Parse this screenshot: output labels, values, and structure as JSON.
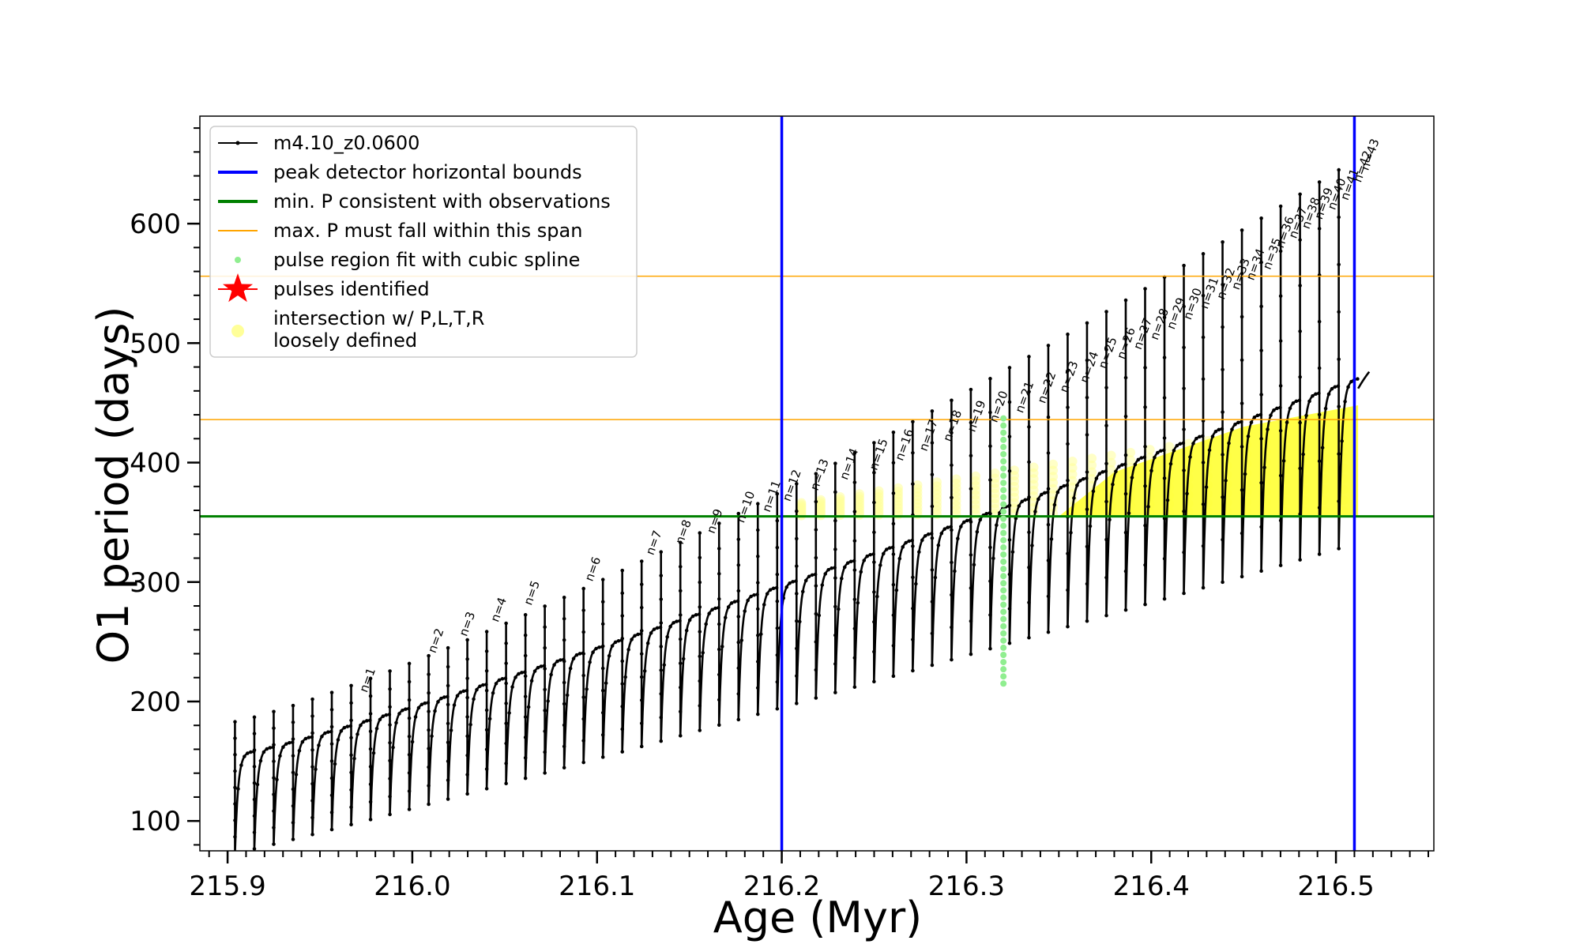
{
  "chart_data": {
    "type": "line",
    "title": "",
    "xlabel": "Age (Myr)",
    "ylabel": "O1 period (days)",
    "xlim": [
      215.885,
      216.553
    ],
    "ylim": [
      75,
      690
    ],
    "xticks": [
      215.9,
      216.0,
      216.1,
      216.2,
      216.3,
      216.4,
      216.5
    ],
    "xtick_labels": [
      "215.9",
      "216.0",
      "216.1",
      "216.2",
      "216.3",
      "216.4",
      "216.5"
    ],
    "yticks": [
      100,
      200,
      300,
      400,
      500,
      600
    ],
    "ytick_labels": [
      "100",
      "200",
      "300",
      "400",
      "500",
      "600"
    ],
    "grid": false,
    "legend_position": "top-left",
    "legend": [
      {
        "label": "m4.10_z0.0600",
        "style": "line-dot",
        "color": "#000000"
      },
      {
        "label": "peak detector horizontal bounds",
        "style": "line",
        "color": "#0000ff"
      },
      {
        "label": "min. P consistent with observations",
        "style": "line",
        "color": "#008000"
      },
      {
        "label": "max. P must fall within this span",
        "style": "thin-line",
        "color": "#ffa500"
      },
      {
        "label": "pulse region fit with cubic spline",
        "style": "dot",
        "color": "#90ee90"
      },
      {
        "label": "pulses identified",
        "style": "star",
        "color": "#ff0000"
      },
      {
        "label": "intersection w/ P,L,T,R",
        "label2": "loosely defined",
        "style": "big-dot",
        "color": "#ffff99"
      }
    ],
    "vertical_lines": [
      {
        "x": 216.2,
        "color": "#0000ff"
      },
      {
        "x": 216.51,
        "color": "#0000ff"
      }
    ],
    "horizontal_lines": [
      {
        "y": 355,
        "color": "#008000",
        "width": 3
      },
      {
        "y": 436,
        "color": "#ffa500",
        "width": 1.5
      },
      {
        "y": 556,
        "color": "#ffa500",
        "width": 1.5
      }
    ],
    "green_pulse_x": 216.32,
    "green_pulse_range": [
      215,
      442
    ],
    "series": [
      {
        "type": "pulse-cycles",
        "color": "#000000",
        "start_age": 215.904,
        "end_age": 216.512,
        "cycle_count": 58,
        "cycle_min_start": 85,
        "cycle_min_end": 340,
        "cycle_max_start": 158,
        "cycle_max_end": 470,
        "tail_end_age": 216.518,
        "tail_end_period": 476
      }
    ],
    "pulse_labels": [
      {
        "label": "n=1",
        "x": 215.972,
        "y": 203
      },
      {
        "label": "n=2",
        "x": 216.009,
        "y": 236
      },
      {
        "label": "n=3",
        "x": 216.026,
        "y": 250
      },
      {
        "label": "n=4",
        "x": 216.043,
        "y": 262
      },
      {
        "label": "n=5",
        "x": 216.061,
        "y": 276
      },
      {
        "label": "n=6",
        "x": 216.094,
        "y": 296
      },
      {
        "label": "n=7",
        "x": 216.127,
        "y": 318
      },
      {
        "label": "n=8",
        "x": 216.143,
        "y": 327
      },
      {
        "label": "n=9",
        "x": 216.16,
        "y": 336
      },
      {
        "label": "n=10",
        "x": 216.176,
        "y": 345
      },
      {
        "label": "n=11",
        "x": 216.19,
        "y": 354
      },
      {
        "label": "n=12",
        "x": 216.201,
        "y": 363
      },
      {
        "label": "n=13",
        "x": 216.216,
        "y": 372
      },
      {
        "label": "n=14",
        "x": 216.232,
        "y": 381
      },
      {
        "label": "n=15",
        "x": 216.248,
        "y": 389
      },
      {
        "label": "n=16",
        "x": 216.262,
        "y": 397
      },
      {
        "label": "n=17",
        "x": 216.275,
        "y": 405
      },
      {
        "label": "n=18",
        "x": 216.288,
        "y": 413
      },
      {
        "label": "n=19",
        "x": 216.301,
        "y": 421
      },
      {
        "label": "n=20",
        "x": 216.313,
        "y": 429
      },
      {
        "label": "n=21",
        "x": 216.327,
        "y": 437
      },
      {
        "label": "n=22",
        "x": 216.339,
        "y": 445
      },
      {
        "label": "n=23",
        "x": 216.351,
        "y": 454
      },
      {
        "label": "n=24",
        "x": 216.362,
        "y": 462
      },
      {
        "label": "n=25",
        "x": 216.372,
        "y": 474
      },
      {
        "label": "n=26",
        "x": 216.382,
        "y": 482
      },
      {
        "label": "n=27",
        "x": 216.391,
        "y": 490
      },
      {
        "label": "n=28",
        "x": 216.4,
        "y": 498
      },
      {
        "label": "n=29",
        "x": 216.409,
        "y": 507
      },
      {
        "label": "n=30",
        "x": 216.418,
        "y": 515
      },
      {
        "label": "n=31",
        "x": 216.427,
        "y": 524
      },
      {
        "label": "n=32",
        "x": 216.436,
        "y": 532
      },
      {
        "label": "n=33",
        "x": 216.444,
        "y": 540
      },
      {
        "label": "n=34",
        "x": 216.452,
        "y": 548
      },
      {
        "label": "n=35",
        "x": 216.461,
        "y": 557
      },
      {
        "label": "n=36",
        "x": 216.468,
        "y": 575
      },
      {
        "label": "n=37",
        "x": 216.475,
        "y": 583
      },
      {
        "label": "n=38",
        "x": 216.482,
        "y": 591
      },
      {
        "label": "n=39",
        "x": 216.489,
        "y": 599
      },
      {
        "label": "n=40",
        "x": 216.496,
        "y": 607
      },
      {
        "label": "n=41",
        "x": 216.503,
        "y": 615
      },
      {
        "label": "n=42",
        "x": 216.51,
        "y": 630
      },
      {
        "label": "n=43",
        "x": 216.514,
        "y": 640
      }
    ]
  }
}
